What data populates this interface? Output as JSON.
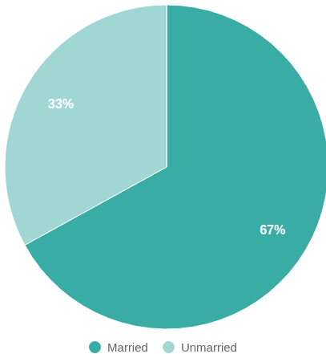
{
  "chart_data": {
    "type": "pie",
    "categories": [
      "Married",
      "Unmarried"
    ],
    "values": [
      67,
      33
    ],
    "value_labels": [
      "67%",
      "33%"
    ],
    "colors": [
      "#3aaca6",
      "#a0d7d5"
    ],
    "data_labels": true,
    "legend": "bottom"
  }
}
